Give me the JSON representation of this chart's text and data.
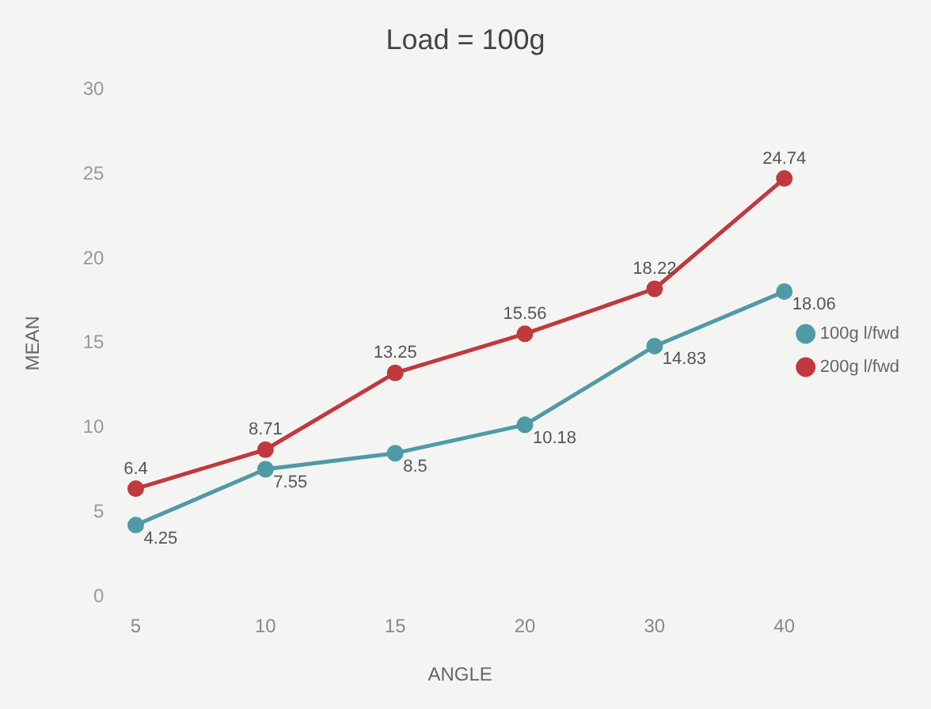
{
  "chart_data": {
    "type": "line",
    "title": "Load = 100g",
    "xlabel": "ANGLE",
    "ylabel": "MEAN",
    "categories": [
      "5",
      "10",
      "15",
      "20",
      "30",
      "40"
    ],
    "series": [
      {
        "name": "100g l/fwd",
        "color": "#4f9aa6",
        "values": [
          4.25,
          7.55,
          8.5,
          10.18,
          14.83,
          18.06
        ]
      },
      {
        "name": "200g l/fwd",
        "color": "#c0393f",
        "values": [
          6.4,
          8.71,
          13.25,
          15.56,
          18.22,
          24.74
        ]
      }
    ],
    "ylim": [
      0,
      30
    ],
    "yticks": [
      0,
      5,
      10,
      15,
      20,
      25,
      30
    ],
    "grid": false,
    "legend": "right",
    "marker": "circle",
    "line_style": "solid",
    "data_labels": true
  }
}
